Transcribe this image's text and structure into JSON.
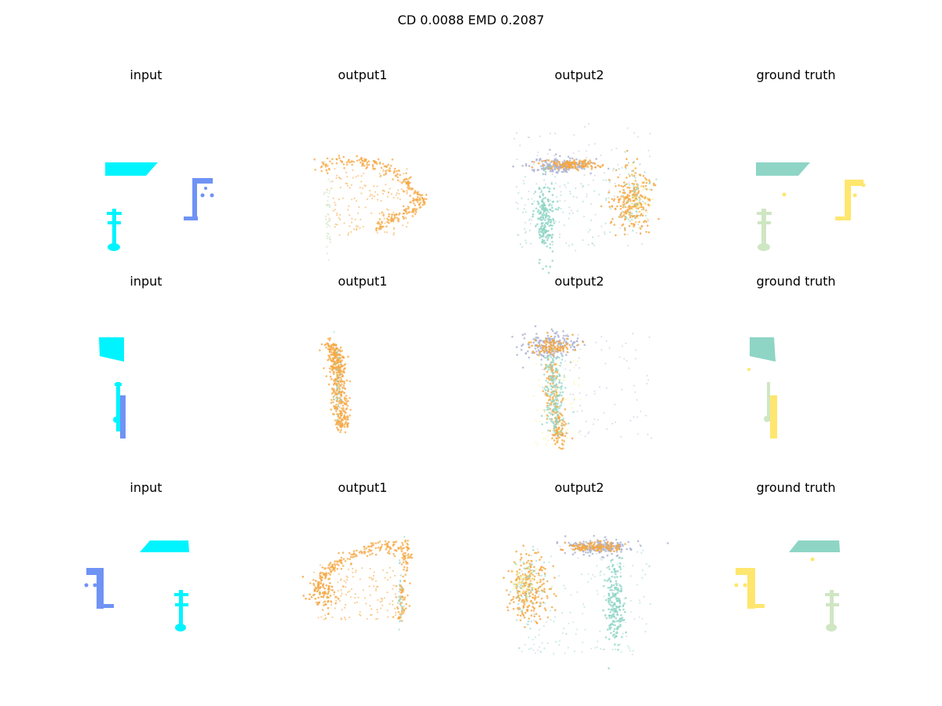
{
  "figure": {
    "title": "CD 0.0088  EMD 0.2087"
  },
  "panel_titles": {
    "input": "input",
    "output1": "output1",
    "output2": "output2",
    "ground_truth": "ground truth"
  },
  "colors": {
    "cyan": "#00F4FF",
    "periwinkle": "#6F93F5",
    "orange": "#F5A742",
    "teal": "#8ED5C6",
    "gray_lavender": "#ABB2D1",
    "pale_green": "#CFE6C3",
    "yellow": "#FFE66E",
    "light_yellow": "#F8F3A0"
  }
}
